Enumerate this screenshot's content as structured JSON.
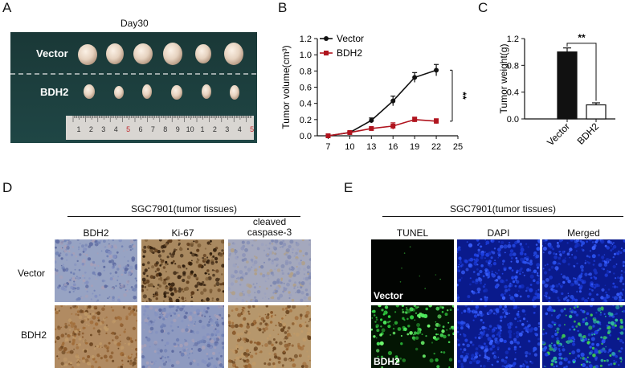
{
  "panels": {
    "A": "A",
    "B": "B",
    "C": "C",
    "D": "D",
    "E": "E"
  },
  "panelA": {
    "title": "Day30",
    "rows": [
      "Vector",
      "BDH2"
    ],
    "ruler_numbers": [
      "1",
      "2",
      "3",
      "4",
      "5",
      "6",
      "7",
      "8",
      "9",
      "10",
      "1",
      "2",
      "3",
      "4",
      "5"
    ]
  },
  "chart_data": [
    {
      "type": "line",
      "panel": "B",
      "ylabel": "Tumor volume(cm³)",
      "x": [
        7,
        10,
        13,
        16,
        19,
        22
      ],
      "xticks": [
        "7",
        "10",
        "13",
        "16",
        "19",
        "22",
        "25"
      ],
      "yticks": [
        "0.0",
        "0.2",
        "0.4",
        "0.6",
        "0.8",
        "1.0",
        "1.2"
      ],
      "xlim": [
        5.5,
        25
      ],
      "ylim": [
        0,
        1.2
      ],
      "series": [
        {
          "name": "Vector",
          "values": [
            0.0,
            0.04,
            0.19,
            0.43,
            0.72,
            0.81
          ],
          "errors": [
            0.01,
            0.01,
            0.03,
            0.06,
            0.06,
            0.07
          ],
          "color": "#111111"
        },
        {
          "name": "BDH2",
          "values": [
            0.0,
            0.04,
            0.09,
            0.12,
            0.2,
            0.18
          ],
          "errors": [
            0.01,
            0.01,
            0.01,
            0.04,
            0.03,
            0.03
          ],
          "color": "#b0141e"
        }
      ],
      "annotation": "**",
      "legend": "top-left"
    },
    {
      "type": "bar",
      "panel": "C",
      "ylabel": "Tumor weight(g)",
      "categories": [
        "Vector",
        "BDH2"
      ],
      "values": [
        1.0,
        0.21
      ],
      "errors": [
        0.06,
        0.03
      ],
      "yticks": [
        "0.0",
        "0.4",
        "0.8",
        "1.2"
      ],
      "ylim": [
        0,
        1.2
      ],
      "annotation": "**"
    }
  ],
  "panelD": {
    "header": "SGC7901(tumor tissues)",
    "columns": [
      "BDH2",
      "Ki-67",
      "cleaved\ncaspase-3"
    ],
    "rows": [
      "Vector",
      "BDH2"
    ]
  },
  "panelE": {
    "header": "SGC7901(tumor tissues)",
    "columns": [
      "TUNEL",
      "DAPI",
      "Merged"
    ],
    "overlays": [
      "Vector",
      "BDH2"
    ]
  }
}
